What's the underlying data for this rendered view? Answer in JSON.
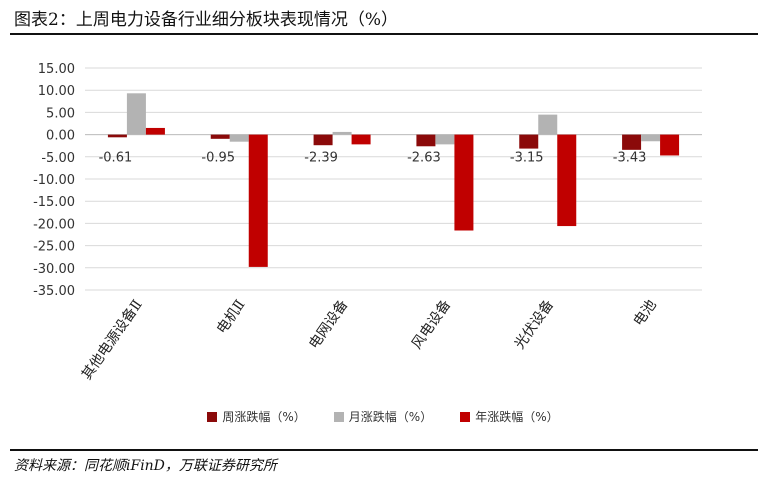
{
  "header": {
    "title": "图表2：上周电力设备行业细分板块表现情况（%）"
  },
  "footer": {
    "source": "资料来源：同花顺iFinD，万联证券研究所"
  },
  "colors": {
    "series_1": "#8b0a0a",
    "series_2": "#b3b3b3",
    "series_3": "#c00000",
    "grid": "#d9d9d9",
    "axis": "#d9d9d9"
  },
  "chart_data": {
    "type": "bar",
    "title": "",
    "xlabel": "",
    "ylabel": "",
    "ylim": [
      -35,
      15
    ],
    "yticks": [
      "15.00",
      "10.00",
      "5.00",
      "0.00",
      "-5.00",
      "-10.00",
      "-15.00",
      "-20.00",
      "-25.00",
      "-30.00",
      "-35.00"
    ],
    "grid": true,
    "legend_position": "bottom",
    "categories": [
      "其他电源设备Ⅱ",
      "电机Ⅱ",
      "电网设备",
      "风电设备",
      "光伏设备",
      "电池"
    ],
    "series": [
      {
        "name": "周涨跌幅（%）",
        "values": [
          -0.61,
          -0.95,
          -2.39,
          -2.63,
          -3.15,
          -3.43
        ]
      },
      {
        "name": "月涨跌幅（%）",
        "values": [
          9.3,
          -1.6,
          0.6,
          -2.2,
          4.5,
          -1.5
        ]
      },
      {
        "name": "年涨跌幅（%）",
        "values": [
          1.5,
          -29.8,
          -2.2,
          -21.6,
          -20.6,
          -4.7
        ]
      }
    ],
    "data_labels": [
      "-0.61",
      "-0.95",
      "-2.39",
      "-2.63",
      "-3.15",
      "-3.43"
    ]
  }
}
